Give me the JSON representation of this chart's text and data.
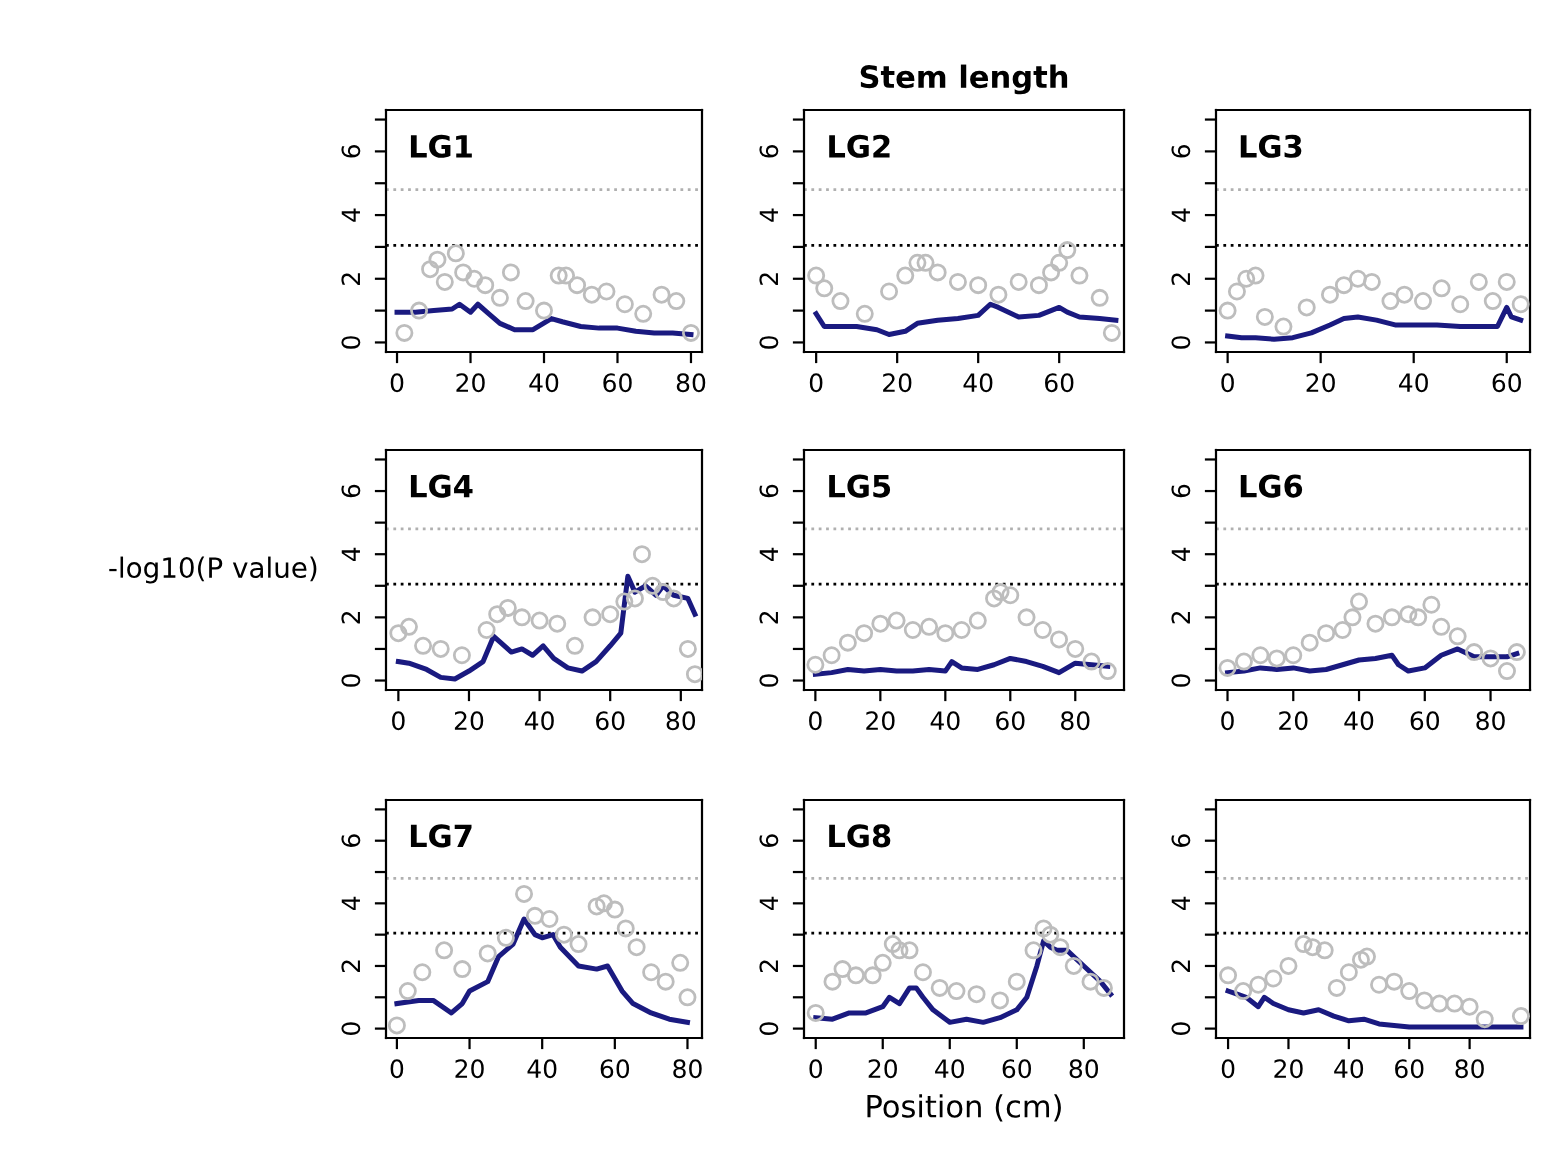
{
  "chart_data": [
    {
      "type": "line",
      "annotations": [
        "LG1"
      ],
      "xlim": [
        -3,
        83
      ],
      "xticks": [
        0,
        20,
        40,
        60,
        80
      ],
      "ylim": [
        -0.3,
        7.3
      ],
      "yticks": [
        0,
        {
          "value": 1,
          "label": null
        },
        2,
        {
          "value": 3,
          "label": null
        },
        4,
        {
          "value": 5,
          "label": null
        },
        6,
        {
          "value": 7,
          "label": null
        }
      ],
      "grid": false,
      "ref_lines": [
        {
          "axis": "y",
          "value": 3.05,
          "color": "#000000",
          "line_style": "dotted"
        },
        {
          "axis": "y",
          "value": 4.8,
          "color": "#b0b0b0",
          "line_style": "dotted"
        }
      ],
      "series": [
        {
          "type": "scatter",
          "marker": "circle",
          "color": "#bdbdbd",
          "x": [
            2,
            6,
            9,
            11,
            13,
            16,
            18,
            21,
            24,
            28,
            31,
            35,
            40,
            44,
            46,
            49,
            53,
            57,
            62,
            67,
            72,
            76,
            80
          ],
          "values": [
            0.3,
            1.0,
            2.3,
            2.6,
            1.9,
            2.8,
            2.2,
            2.0,
            1.8,
            1.4,
            2.2,
            1.3,
            1.0,
            2.1,
            2.1,
            1.8,
            1.5,
            1.6,
            1.2,
            0.9,
            1.5,
            1.3,
            0.3
          ]
        },
        {
          "type": "line",
          "color": "#1a1a80",
          "x": [
            0,
            5,
            10,
            15,
            17,
            20,
            22,
            25,
            28,
            32,
            37,
            42,
            45,
            50,
            55,
            60,
            65,
            70,
            75,
            80
          ],
          "values": [
            0.95,
            0.95,
            1.0,
            1.05,
            1.2,
            0.95,
            1.2,
            0.9,
            0.6,
            0.4,
            0.4,
            0.75,
            0.65,
            0.5,
            0.45,
            0.45,
            0.35,
            0.3,
            0.3,
            0.25
          ]
        }
      ]
    },
    {
      "type": "line",
      "title": "Stem length",
      "annotations": [
        "LG2"
      ],
      "xlim": [
        -3,
        76
      ],
      "xticks": [
        0,
        20,
        40,
        60
      ],
      "ylim": [
        -0.3,
        7.3
      ],
      "yticks": [
        0,
        {
          "value": 1,
          "label": null
        },
        2,
        {
          "value": 3,
          "label": null
        },
        4,
        {
          "value": 5,
          "label": null
        },
        6,
        {
          "value": 7,
          "label": null
        }
      ],
      "grid": false,
      "ref_lines": [
        {
          "axis": "y",
          "value": 3.05,
          "color": "#000000",
          "line_style": "dotted"
        },
        {
          "axis": "y",
          "value": 4.8,
          "color": "#b0b0b0",
          "line_style": "dotted"
        }
      ],
      "series": [
        {
          "type": "scatter",
          "marker": "circle",
          "color": "#bdbdbd",
          "x": [
            0,
            2,
            6,
            12,
            18,
            22,
            25,
            27,
            30,
            35,
            40,
            45,
            50,
            55,
            58,
            60,
            62,
            65,
            70,
            73
          ],
          "values": [
            2.1,
            1.7,
            1.3,
            0.9,
            1.6,
            2.1,
            2.5,
            2.5,
            2.2,
            1.9,
            1.8,
            1.5,
            1.9,
            1.8,
            2.2,
            2.5,
            2.9,
            2.1,
            1.4,
            0.3
          ]
        },
        {
          "type": "line",
          "color": "#1a1a80",
          "x": [
            0,
            2,
            5,
            10,
            15,
            18,
            22,
            25,
            30,
            35,
            40,
            43,
            45,
            50,
            55,
            60,
            62,
            65,
            70,
            74
          ],
          "values": [
            0.9,
            0.5,
            0.5,
            0.5,
            0.4,
            0.25,
            0.35,
            0.6,
            0.7,
            0.75,
            0.85,
            1.2,
            1.1,
            0.8,
            0.85,
            1.1,
            0.95,
            0.8,
            0.75,
            0.7
          ]
        }
      ]
    },
    {
      "type": "line",
      "annotations": [
        "LG3"
      ],
      "xlim": [
        -2.5,
        65
      ],
      "xticks": [
        0,
        20,
        40,
        60
      ],
      "ylim": [
        -0.3,
        7.3
      ],
      "yticks": [
        0,
        {
          "value": 1,
          "label": null
        },
        2,
        {
          "value": 3,
          "label": null
        },
        4,
        {
          "value": 5,
          "label": null
        },
        6,
        {
          "value": 7,
          "label": null
        }
      ],
      "grid": false,
      "ref_lines": [
        {
          "axis": "y",
          "value": 3.05,
          "color": "#000000",
          "line_style": "dotted"
        },
        {
          "axis": "y",
          "value": 4.8,
          "color": "#b0b0b0",
          "line_style": "dotted"
        }
      ],
      "series": [
        {
          "type": "scatter",
          "marker": "circle",
          "color": "#bdbdbd",
          "x": [
            0,
            2,
            4,
            6,
            8,
            12,
            17,
            22,
            25,
            28,
            31,
            35,
            38,
            42,
            46,
            50,
            54,
            57,
            60,
            63
          ],
          "values": [
            1.0,
            1.6,
            2.0,
            2.1,
            0.8,
            0.5,
            1.1,
            1.5,
            1.8,
            2.0,
            1.9,
            1.3,
            1.5,
            1.3,
            1.7,
            1.2,
            1.9,
            1.3,
            1.9,
            1.2
          ]
        },
        {
          "type": "line",
          "color": "#1a1a80",
          "x": [
            0,
            3,
            6,
            10,
            14,
            18,
            22,
            25,
            28,
            32,
            36,
            40,
            45,
            50,
            55,
            58,
            60,
            61,
            63
          ],
          "values": [
            0.2,
            0.15,
            0.15,
            0.1,
            0.15,
            0.3,
            0.55,
            0.75,
            0.8,
            0.7,
            0.55,
            0.55,
            0.55,
            0.5,
            0.5,
            0.5,
            1.1,
            0.8,
            0.7
          ]
        }
      ]
    },
    {
      "type": "line",
      "ylabel": "-log10(P value)",
      "annotations": [
        "LG4"
      ],
      "xlim": [
        -3.5,
        86
      ],
      "xticks": [
        0,
        20,
        40,
        60,
        80
      ],
      "ylim": [
        -0.3,
        7.3
      ],
      "yticks": [
        0,
        {
          "value": 1,
          "label": null
        },
        2,
        {
          "value": 3,
          "label": null
        },
        4,
        {
          "value": 5,
          "label": null
        },
        6,
        {
          "value": 7,
          "label": null
        }
      ],
      "grid": false,
      "ref_lines": [
        {
          "axis": "y",
          "value": 3.05,
          "color": "#000000",
          "line_style": "dotted"
        },
        {
          "axis": "y",
          "value": 4.8,
          "color": "#b0b0b0",
          "line_style": "dotted"
        }
      ],
      "series": [
        {
          "type": "scatter",
          "marker": "circle",
          "color": "#bdbdbd",
          "x": [
            0,
            3,
            7,
            12,
            18,
            25,
            28,
            31,
            35,
            40,
            45,
            50,
            55,
            60,
            64,
            67,
            69,
            72,
            75,
            78,
            82,
            84
          ],
          "values": [
            1.5,
            1.7,
            1.1,
            1.0,
            0.8,
            1.6,
            2.1,
            2.3,
            2.0,
            1.9,
            1.8,
            1.1,
            2.0,
            2.1,
            2.5,
            2.6,
            4.0,
            3.0,
            2.8,
            2.6,
            1.0,
            0.2
          ]
        },
        {
          "type": "line",
          "color": "#1a1a80",
          "x": [
            0,
            3,
            8,
            12,
            16,
            20,
            24,
            27,
            29,
            32,
            35,
            38,
            41,
            44,
            48,
            52,
            56,
            60,
            63,
            65,
            67,
            70,
            73,
            75,
            78,
            82,
            84
          ],
          "values": [
            0.6,
            0.55,
            0.35,
            0.1,
            0.05,
            0.3,
            0.6,
            1.4,
            1.2,
            0.9,
            1.0,
            0.8,
            1.1,
            0.7,
            0.4,
            0.3,
            0.6,
            1.1,
            1.5,
            3.3,
            2.8,
            3.0,
            2.7,
            3.0,
            2.7,
            2.6,
            2.1
          ]
        }
      ]
    },
    {
      "type": "line",
      "annotations": [
        "LG5"
      ],
      "xlim": [
        -3.5,
        95
      ],
      "xticks": [
        0,
        20,
        40,
        60,
        80
      ],
      "ylim": [
        -0.3,
        7.3
      ],
      "yticks": [
        0,
        {
          "value": 1,
          "label": null
        },
        2,
        {
          "value": 3,
          "label": null
        },
        4,
        {
          "value": 5,
          "label": null
        },
        6,
        {
          "value": 7,
          "label": null
        }
      ],
      "grid": false,
      "ref_lines": [
        {
          "axis": "y",
          "value": 3.05,
          "color": "#000000",
          "line_style": "dotted"
        },
        {
          "axis": "y",
          "value": 4.8,
          "color": "#b0b0b0",
          "line_style": "dotted"
        }
      ],
      "series": [
        {
          "type": "scatter",
          "marker": "circle",
          "color": "#bdbdbd",
          "x": [
            0,
            5,
            10,
            15,
            20,
            25,
            30,
            35,
            40,
            45,
            50,
            55,
            57,
            60,
            65,
            70,
            75,
            80,
            85,
            90
          ],
          "values": [
            0.5,
            0.8,
            1.2,
            1.5,
            1.8,
            1.9,
            1.6,
            1.7,
            1.5,
            1.6,
            1.9,
            2.6,
            2.8,
            2.7,
            2.0,
            1.6,
            1.3,
            1.0,
            0.6,
            0.3
          ]
        },
        {
          "type": "line",
          "color": "#1a1a80",
          "x": [
            0,
            5,
            10,
            15,
            20,
            25,
            30,
            35,
            40,
            42,
            45,
            50,
            55,
            60,
            65,
            70,
            75,
            80,
            85,
            90
          ],
          "values": [
            0.2,
            0.25,
            0.35,
            0.3,
            0.35,
            0.3,
            0.3,
            0.35,
            0.3,
            0.6,
            0.4,
            0.35,
            0.5,
            0.7,
            0.6,
            0.45,
            0.25,
            0.55,
            0.5,
            0.45
          ]
        }
      ]
    },
    {
      "type": "line",
      "annotations": [
        "LG6"
      ],
      "xlim": [
        -3.5,
        92
      ],
      "xticks": [
        0,
        20,
        40,
        60,
        80
      ],
      "ylim": [
        -0.3,
        7.3
      ],
      "yticks": [
        0,
        {
          "value": 1,
          "label": null
        },
        2,
        {
          "value": 3,
          "label": null
        },
        4,
        {
          "value": 5,
          "label": null
        },
        6,
        {
          "value": 7,
          "label": null
        }
      ],
      "grid": false,
      "ref_lines": [
        {
          "axis": "y",
          "value": 3.05,
          "color": "#000000",
          "line_style": "dotted"
        },
        {
          "axis": "y",
          "value": 4.8,
          "color": "#b0b0b0",
          "line_style": "dotted"
        }
      ],
      "series": [
        {
          "type": "scatter",
          "marker": "circle",
          "color": "#bdbdbd",
          "x": [
            0,
            5,
            10,
            15,
            20,
            25,
            30,
            35,
            38,
            40,
            45,
            50,
            55,
            58,
            62,
            65,
            70,
            75,
            80,
            85,
            88
          ],
          "values": [
            0.4,
            0.6,
            0.8,
            0.7,
            0.8,
            1.2,
            1.5,
            1.6,
            2.0,
            2.5,
            1.8,
            2.0,
            2.1,
            2.0,
            2.4,
            1.7,
            1.4,
            0.9,
            0.7,
            0.3,
            0.9
          ]
        },
        {
          "type": "line",
          "color": "#1a1a80",
          "x": [
            0,
            5,
            10,
            15,
            20,
            25,
            30,
            35,
            40,
            45,
            50,
            52,
            55,
            60,
            65,
            70,
            75,
            80,
            85,
            88
          ],
          "values": [
            0.25,
            0.3,
            0.4,
            0.35,
            0.4,
            0.3,
            0.35,
            0.5,
            0.65,
            0.7,
            0.8,
            0.5,
            0.3,
            0.4,
            0.8,
            1.0,
            0.75,
            0.75,
            0.75,
            0.85
          ]
        }
      ]
    },
    {
      "type": "line",
      "annotations": [
        "LG7"
      ],
      "xlim": [
        -3,
        84
      ],
      "xticks": [
        0,
        20,
        40,
        60,
        80
      ],
      "ylim": [
        -0.3,
        7.3
      ],
      "yticks": [
        0,
        {
          "value": 1,
          "label": null
        },
        2,
        {
          "value": 3,
          "label": null
        },
        4,
        {
          "value": 5,
          "label": null
        },
        6,
        {
          "value": 7,
          "label": null
        }
      ],
      "grid": false,
      "ref_lines": [
        {
          "axis": "y",
          "value": 3.05,
          "color": "#000000",
          "line_style": "dotted"
        },
        {
          "axis": "y",
          "value": 4.8,
          "color": "#b0b0b0",
          "line_style": "dotted"
        }
      ],
      "series": [
        {
          "type": "scatter",
          "marker": "circle",
          "color": "#bdbdbd",
          "x": [
            0,
            3,
            7,
            13,
            18,
            25,
            30,
            35,
            38,
            42,
            46,
            50,
            55,
            57,
            60,
            63,
            66,
            70,
            74,
            78,
            80
          ],
          "values": [
            0.1,
            1.2,
            1.8,
            2.5,
            1.9,
            2.4,
            2.9,
            4.3,
            3.6,
            3.5,
            3.0,
            2.7,
            3.9,
            4.0,
            3.8,
            3.2,
            2.6,
            1.8,
            1.5,
            2.1,
            1.0
          ]
        },
        {
          "type": "line",
          "color": "#1a1a80",
          "x": [
            0,
            3,
            6,
            10,
            15,
            18,
            20,
            25,
            28,
            32,
            35,
            38,
            40,
            43,
            45,
            50,
            55,
            58,
            62,
            65,
            70,
            75,
            80
          ],
          "values": [
            0.8,
            0.85,
            0.9,
            0.9,
            0.5,
            0.8,
            1.2,
            1.5,
            2.3,
            2.7,
            3.5,
            3.0,
            2.9,
            3.0,
            2.6,
            2.0,
            1.9,
            2.0,
            1.2,
            0.8,
            0.5,
            0.3,
            0.2
          ]
        }
      ]
    },
    {
      "type": "line",
      "xlabel": "Position (cm)",
      "annotations": [
        "LG8"
      ],
      "xlim": [
        -3.5,
        92
      ],
      "xticks": [
        0,
        20,
        40,
        60,
        80
      ],
      "ylim": [
        -0.3,
        7.3
      ],
      "yticks": [
        0,
        {
          "value": 1,
          "label": null
        },
        2,
        {
          "value": 3,
          "label": null
        },
        4,
        {
          "value": 5,
          "label": null
        },
        6,
        {
          "value": 7,
          "label": null
        }
      ],
      "grid": false,
      "ref_lines": [
        {
          "axis": "y",
          "value": 3.05,
          "color": "#000000",
          "line_style": "dotted"
        },
        {
          "axis": "y",
          "value": 4.8,
          "color": "#b0b0b0",
          "line_style": "dotted"
        }
      ],
      "series": [
        {
          "type": "scatter",
          "marker": "circle",
          "color": "#bdbdbd",
          "x": [
            0,
            5,
            8,
            12,
            17,
            20,
            23,
            25,
            28,
            32,
            37,
            42,
            48,
            55,
            60,
            65,
            68,
            70,
            73,
            77,
            82,
            86
          ],
          "values": [
            0.5,
            1.5,
            1.9,
            1.7,
            1.7,
            2.1,
            2.7,
            2.5,
            2.5,
            1.8,
            1.3,
            1.2,
            1.1,
            0.9,
            1.5,
            2.5,
            3.2,
            3.0,
            2.6,
            2.0,
            1.5,
            1.3
          ]
        },
        {
          "type": "line",
          "color": "#1a1a80",
          "x": [
            0,
            5,
            10,
            15,
            20,
            22,
            25,
            28,
            30,
            32,
            35,
            40,
            45,
            50,
            55,
            60,
            63,
            66,
            68,
            70,
            72,
            75,
            80,
            85,
            88
          ],
          "values": [
            0.35,
            0.3,
            0.5,
            0.5,
            0.7,
            1.0,
            0.8,
            1.3,
            1.3,
            1.0,
            0.6,
            0.2,
            0.3,
            0.2,
            0.35,
            0.6,
            1.0,
            2.0,
            2.8,
            2.6,
            2.5,
            2.5,
            2.0,
            1.5,
            1.1
          ]
        }
      ]
    },
    {
      "type": "line",
      "xlim": [
        -4,
        100
      ],
      "xticks": [
        0,
        20,
        40,
        60,
        80
      ],
      "ylim": [
        -0.3,
        7.3
      ],
      "yticks": [
        0,
        {
          "value": 1,
          "label": null
        },
        2,
        {
          "value": 3,
          "label": null
        },
        4,
        {
          "value": 5,
          "label": null
        },
        6,
        {
          "value": 7,
          "label": null
        }
      ],
      "grid": false,
      "ref_lines": [
        {
          "axis": "y",
          "value": 3.05,
          "color": "#000000",
          "line_style": "dotted"
        },
        {
          "axis": "y",
          "value": 4.8,
          "color": "#b0b0b0",
          "line_style": "dotted"
        }
      ],
      "series": [
        {
          "type": "scatter",
          "marker": "circle",
          "color": "#bdbdbd",
          "x": [
            0,
            5,
            10,
            15,
            20,
            25,
            28,
            32,
            36,
            40,
            44,
            46,
            50,
            55,
            60,
            65,
            70,
            75,
            80,
            85,
            97
          ],
          "values": [
            1.7,
            1.2,
            1.4,
            1.6,
            2.0,
            2.7,
            2.6,
            2.5,
            1.3,
            1.8,
            2.2,
            2.3,
            1.4,
            1.5,
            1.2,
            0.9,
            0.8,
            0.8,
            0.7,
            0.3,
            0.4
          ]
        },
        {
          "type": "line",
          "color": "#1a1a80",
          "x": [
            0,
            3,
            6,
            10,
            12,
            15,
            20,
            25,
            30,
            35,
            40,
            45,
            50,
            55,
            60,
            70,
            80,
            90,
            97
          ],
          "values": [
            1.2,
            1.1,
            1.0,
            0.7,
            1.0,
            0.8,
            0.6,
            0.5,
            0.6,
            0.4,
            0.25,
            0.3,
            0.15,
            0.1,
            0.05,
            0.05,
            0.05,
            0.05,
            0.05
          ]
        }
      ]
    }
  ]
}
